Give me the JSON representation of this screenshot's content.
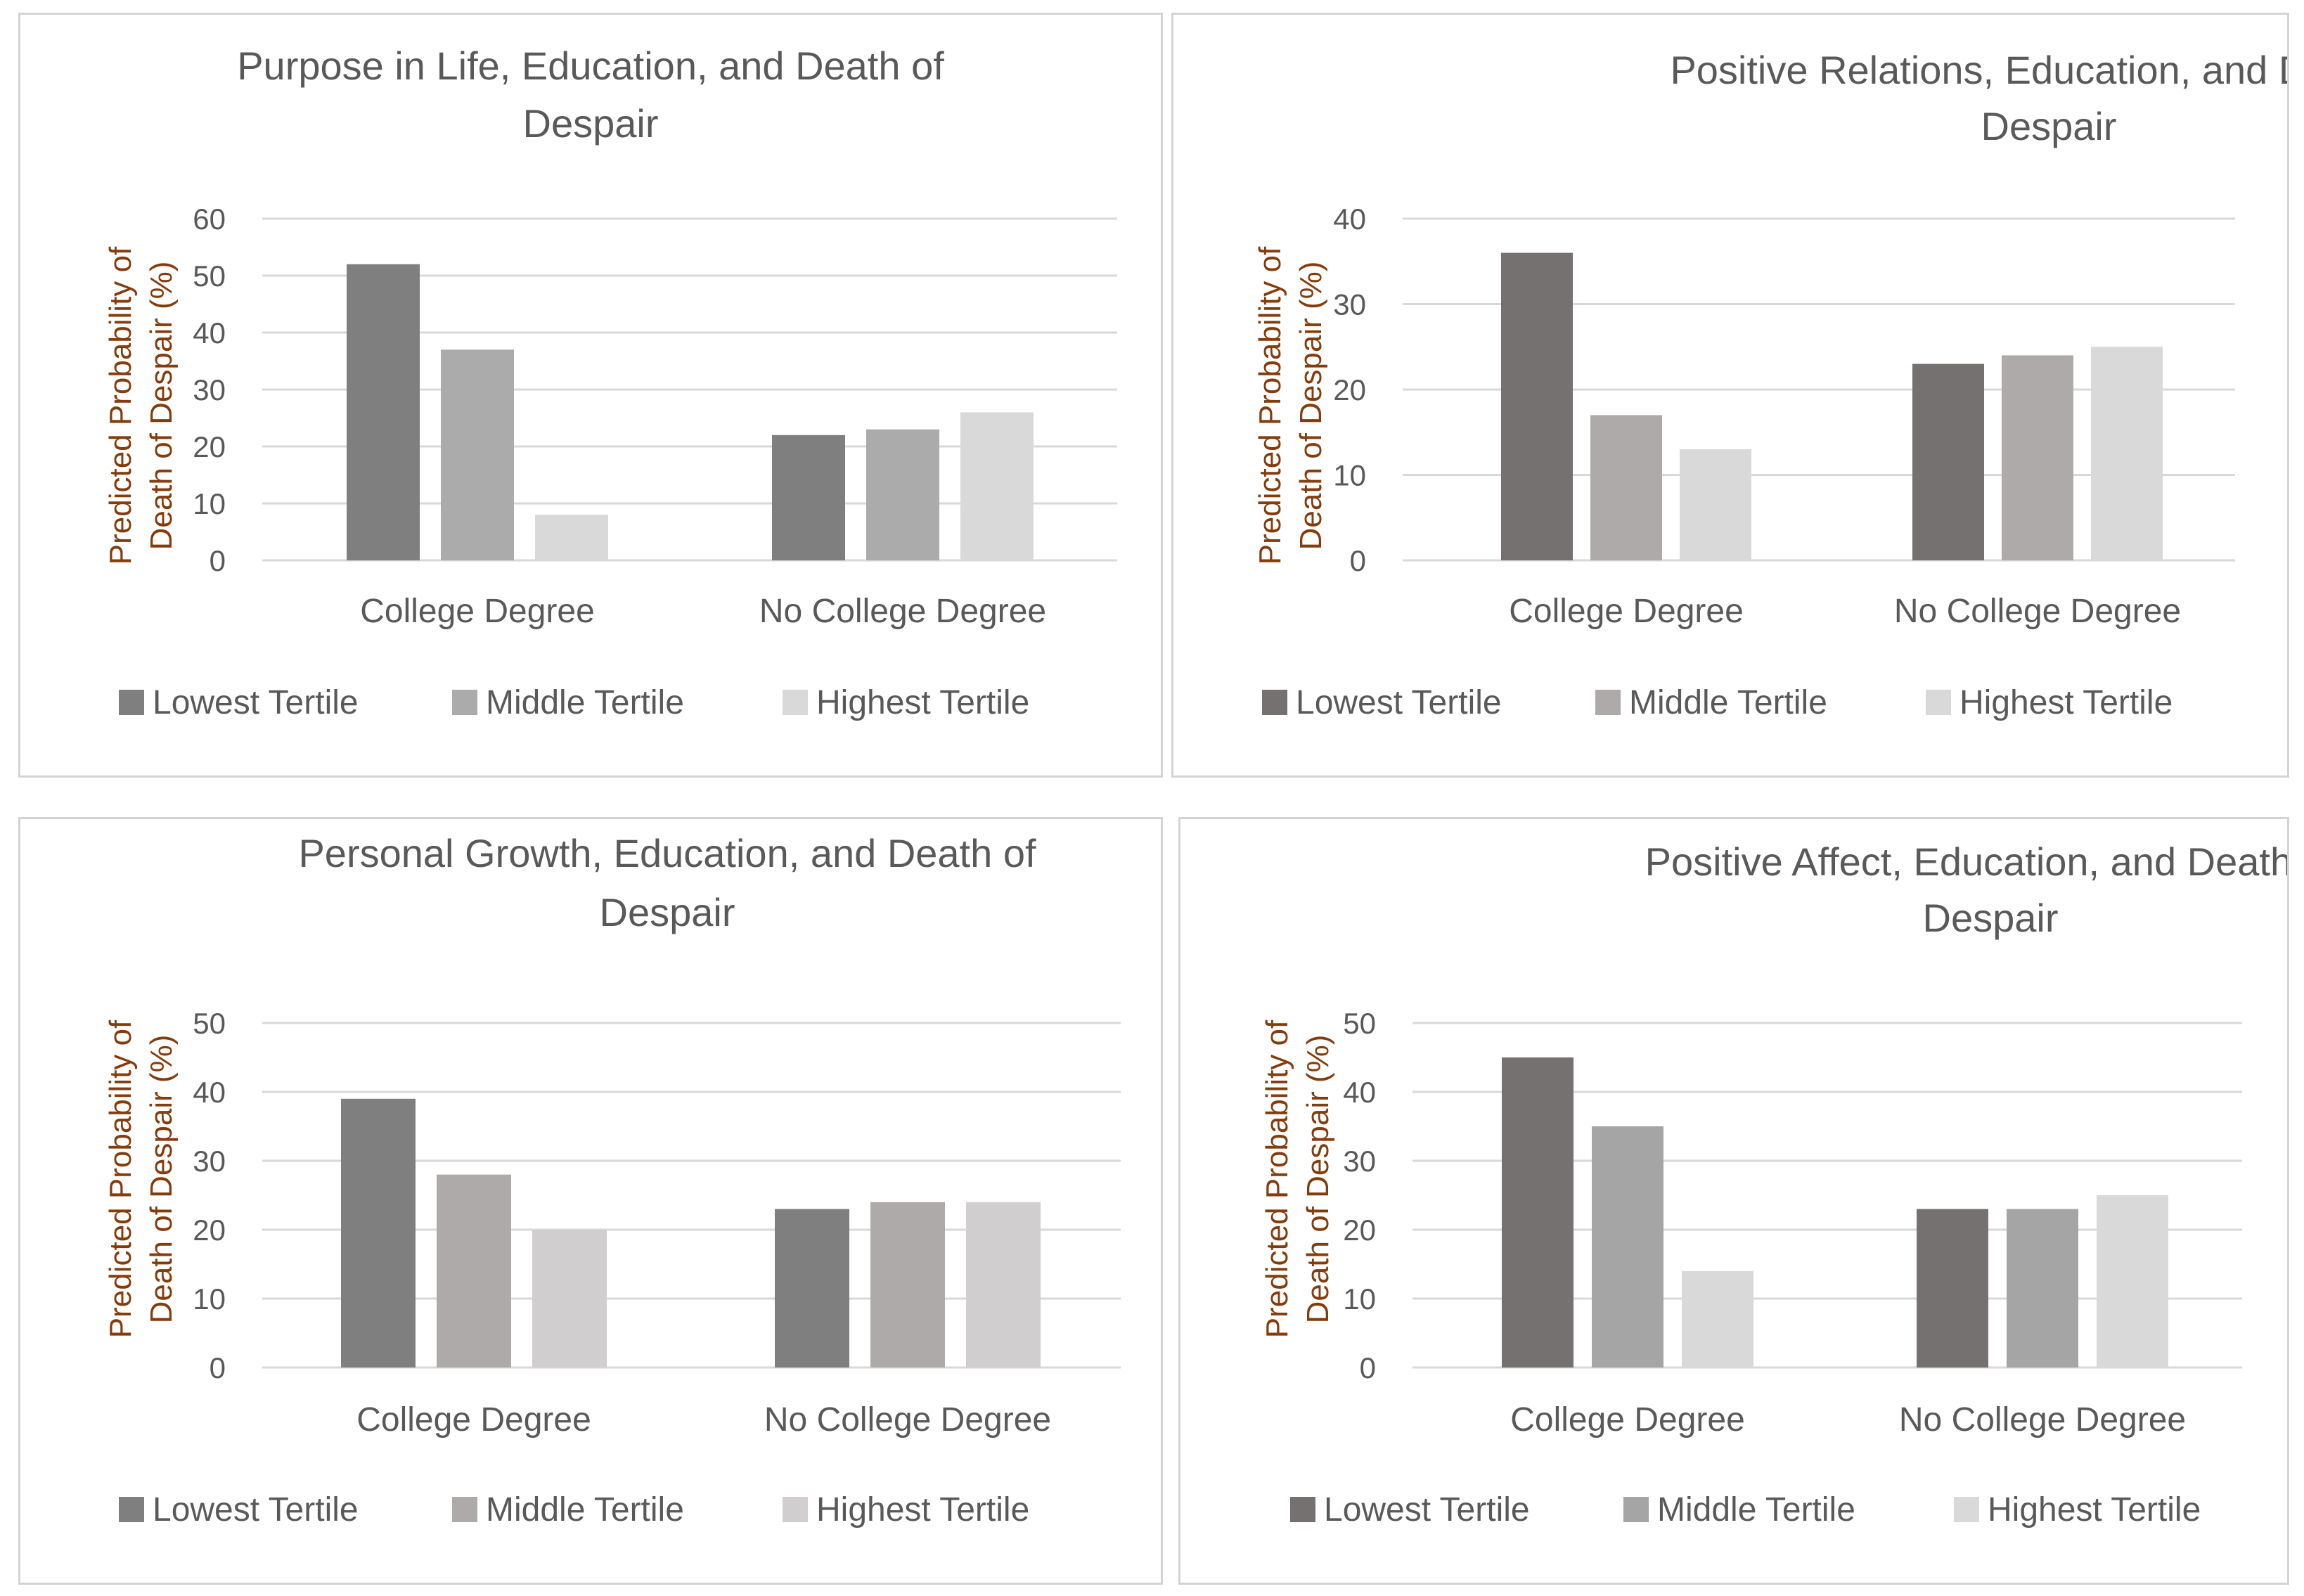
{
  "chart_data": [
    {
      "type": "bar",
      "title": "Purpose in Life, Education, and Death of Despair",
      "title_lines": [
        "Purpose in Life, Education, and Death of",
        "Despair"
      ],
      "ylabel_lines": [
        "Predicted Probability of",
        "Death of Despair (%)"
      ],
      "xlabel": "",
      "categories": [
        "College Degree",
        "No College Degree"
      ],
      "ylim": [
        0,
        60
      ],
      "yticks": [
        0,
        10,
        20,
        30,
        40,
        50,
        60
      ],
      "grid": true,
      "legend_position": "bottom",
      "series": [
        {
          "name": "Lowest Tertile",
          "color": "#7f7f7f",
          "values": [
            52,
            22
          ]
        },
        {
          "name": "Middle Tertile",
          "color": "#ababab",
          "values": [
            37,
            23
          ]
        },
        {
          "name": "Highest Tertile",
          "color": "#d9d9d9",
          "values": [
            8,
            26
          ]
        }
      ]
    },
    {
      "type": "bar",
      "title": "Positive Relations, Education, and Death of Despair",
      "title_lines": [
        "Positive Relations, Education, and Death of",
        "Despair"
      ],
      "ylabel_lines": [
        "Predicted Probability of",
        "Death of Despair (%)"
      ],
      "xlabel": "",
      "categories": [
        "College Degree",
        "No College Degree"
      ],
      "ylim": [
        0,
        40
      ],
      "yticks": [
        0,
        10,
        20,
        30,
        40
      ],
      "grid": true,
      "legend_position": "bottom",
      "series": [
        {
          "name": "Lowest Tertile",
          "color": "#767171",
          "values": [
            36,
            23
          ]
        },
        {
          "name": "Middle Tertile",
          "color": "#aeaaaa",
          "values": [
            17,
            24
          ]
        },
        {
          "name": "Highest Tertile",
          "color": "#d9d9d9",
          "values": [
            13,
            25
          ]
        }
      ]
    },
    {
      "type": "bar",
      "title": "Personal Growth, Education, and Death of Despair",
      "title_lines": [
        "Personal Growth, Education, and Death of",
        "Despair"
      ],
      "ylabel_lines": [
        "Predicted Probability of",
        "Death of Despair (%)"
      ],
      "xlabel": "",
      "categories": [
        "College Degree",
        "No College Degree"
      ],
      "ylim": [
        0,
        50
      ],
      "yticks": [
        0,
        10,
        20,
        30,
        40,
        50
      ],
      "grid": true,
      "legend_position": "bottom",
      "series": [
        {
          "name": "Lowest Tertile",
          "color": "#7f7f7f",
          "values": [
            39,
            23
          ]
        },
        {
          "name": "Middle Tertile",
          "color": "#aeaaaa",
          "values": [
            28,
            24
          ]
        },
        {
          "name": "Highest Tertile",
          "color": "#d0cece",
          "values": [
            20,
            24
          ]
        }
      ]
    },
    {
      "type": "bar",
      "title": "Positive Affect, Education, and Death of Despair",
      "title_lines": [
        "Positive Affect, Education, and Death of",
        "Despair"
      ],
      "ylabel_lines": [
        "Predicted Probability of",
        "Death of Despair (%)"
      ],
      "xlabel": "",
      "categories": [
        "College Degree",
        "No College Degree"
      ],
      "ylim": [
        0,
        50
      ],
      "yticks": [
        0,
        10,
        20,
        30,
        40,
        50
      ],
      "grid": true,
      "legend_position": "bottom",
      "series": [
        {
          "name": "Lowest Tertile",
          "color": "#767171",
          "values": [
            45,
            23
          ]
        },
        {
          "name": "Middle Tertile",
          "color": "#a5a5a5",
          "values": [
            35,
            23
          ]
        },
        {
          "name": "Highest Tertile",
          "color": "#d9d9d9",
          "values": [
            14,
            25
          ]
        }
      ]
    }
  ],
  "colors": {
    "text": "#595959",
    "ylabel_text": "#843c0c",
    "gridline": "#d9d9d9",
    "panel_border": "#d4d4d4"
  }
}
